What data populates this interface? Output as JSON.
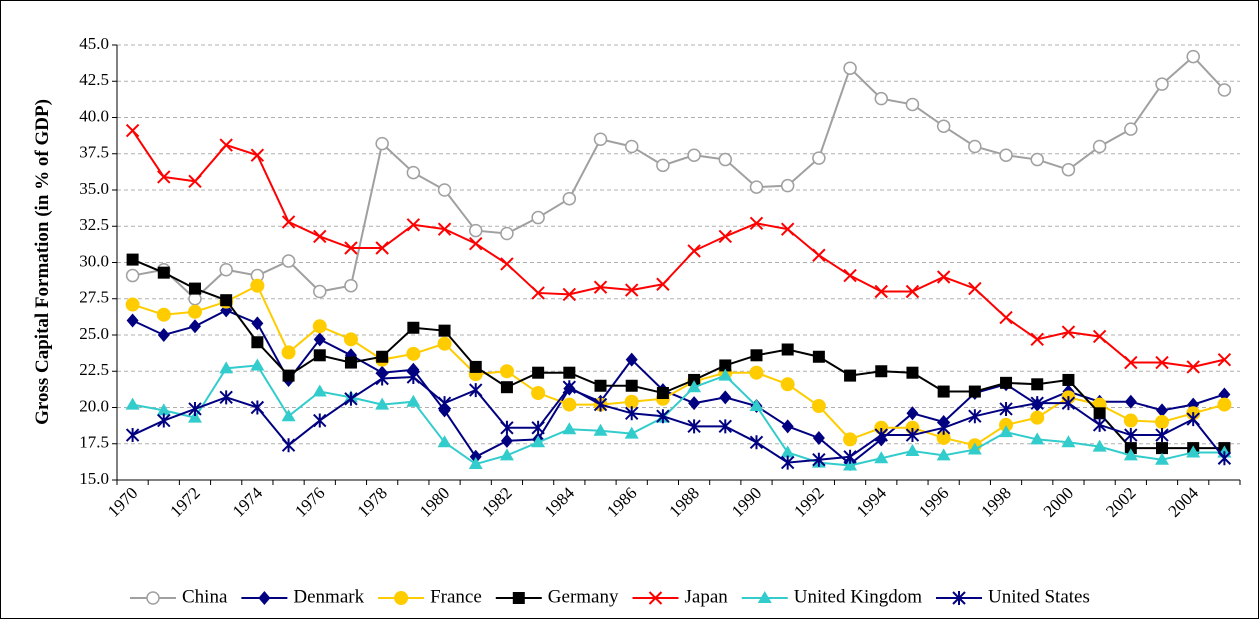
{
  "chart_data": {
    "type": "line",
    "y_label": "Gross Capital Formation (in % of GDP)",
    "categories": [
      "1970",
      null,
      "1972",
      null,
      "1974",
      null,
      "1976",
      null,
      "1978",
      null,
      "1980",
      null,
      "1982",
      null,
      "1984",
      null,
      "1986",
      null,
      "1988",
      null,
      "1990",
      null,
      "1992",
      null,
      "1994",
      null,
      "1996",
      null,
      "1998",
      null,
      "2000",
      null,
      "2002",
      null,
      "2004",
      null
    ],
    "ylim": [
      15,
      45
    ],
    "yticks": [
      {
        "value": 15,
        "label": "15.0"
      },
      17.5,
      {
        "value": 20,
        "label": "20.0"
      },
      22.5,
      {
        "value": 25,
        "label": "25.0"
      },
      27.5,
      {
        "value": 30,
        "label": "30.0"
      },
      32.5,
      {
        "value": 35,
        "label": "35.0"
      },
      37.5,
      {
        "value": 40,
        "label": "40.0"
      },
      42.5,
      {
        "value": 45,
        "label": "45.0"
      }
    ],
    "grid": true,
    "legend": "bottom",
    "series": [
      {
        "name": "China",
        "color": "#a0a0a0",
        "marker": "circle-open",
        "values": [
          29.1,
          29.5,
          27.5,
          29.5,
          29.1,
          30.1,
          28.0,
          28.4,
          38.2,
          36.2,
          35.0,
          32.2,
          32.0,
          33.1,
          34.4,
          38.5,
          38.0,
          36.7,
          37.4,
          37.1,
          35.2,
          35.3,
          37.2,
          43.4,
          41.3,
          40.9,
          39.4,
          38.0,
          37.4,
          37.1,
          36.4,
          38.0,
          39.2,
          42.3,
          44.2,
          41.9
        ]
      },
      {
        "name": "Denmark",
        "color": "#000080",
        "marker": "diamond",
        "values": [
          26.0,
          25.0,
          25.6,
          26.7,
          25.8,
          21.9,
          24.7,
          23.6,
          22.4,
          22.6,
          19.8,
          16.6,
          17.7,
          17.8,
          21.3,
          20.4,
          23.3,
          21.2,
          20.3,
          20.7,
          20.1,
          18.7,
          17.9,
          16.1,
          17.8,
          19.6,
          19.0,
          21.0,
          21.6,
          20.2,
          21.1,
          20.4,
          20.4,
          19.8,
          20.2,
          20.9
        ]
      },
      {
        "name": "France",
        "color": "#ffcc00",
        "marker": "circle",
        "values": [
          27.1,
          26.4,
          26.6,
          27.3,
          28.4,
          23.8,
          25.6,
          24.7,
          23.3,
          23.7,
          24.4,
          22.3,
          22.5,
          21.0,
          20.2,
          20.2,
          20.4,
          20.6,
          21.8,
          22.4,
          22.4,
          21.6,
          20.1,
          17.8,
          18.6,
          18.6,
          17.9,
          17.4,
          18.8,
          19.3,
          20.7,
          20.2,
          19.1,
          19.0,
          19.6,
          20.2
        ]
      },
      {
        "name": "Germany",
        "color": "#000000",
        "marker": "square",
        "values": [
          30.2,
          29.3,
          28.2,
          27.4,
          24.5,
          22.2,
          23.6,
          23.1,
          23.5,
          25.5,
          25.3,
          22.8,
          21.4,
          22.4,
          22.4,
          21.5,
          21.5,
          21.0,
          21.9,
          22.9,
          23.6,
          24.0,
          23.5,
          22.2,
          22.5,
          22.4,
          21.1,
          21.1,
          21.7,
          21.6,
          21.9,
          19.6,
          17.2,
          17.2,
          17.2,
          17.2
        ]
      },
      {
        "name": "Japan",
        "color": "#ff0000",
        "marker": "x",
        "values": [
          39.1,
          35.9,
          35.6,
          38.1,
          37.4,
          32.8,
          31.8,
          31.0,
          31.0,
          32.6,
          32.3,
          31.3,
          29.9,
          27.9,
          27.8,
          28.3,
          28.1,
          28.5,
          30.8,
          31.8,
          32.7,
          32.3,
          30.5,
          29.1,
          28.0,
          28.0,
          29.0,
          28.2,
          26.2,
          24.7,
          25.2,
          24.9,
          23.1,
          23.1,
          22.8,
          23.3
        ]
      },
      {
        "name": "United Kingdom",
        "color": "#33cccc",
        "marker": "triangle",
        "values": [
          20.2,
          19.8,
          19.3,
          22.7,
          22.9,
          19.4,
          21.1,
          20.7,
          20.2,
          20.4,
          17.6,
          16.1,
          16.7,
          17.6,
          18.5,
          18.4,
          18.2,
          19.3,
          21.4,
          22.2,
          20.1,
          16.9,
          16.2,
          16.0,
          16.5,
          17.0,
          16.7,
          17.1,
          18.3,
          17.8,
          17.6,
          17.3,
          16.7,
          16.4,
          16.9,
          16.9
        ]
      },
      {
        "name": "United States",
        "color": "#000080",
        "marker": "asterisk",
        "values": [
          18.1,
          19.1,
          19.9,
          20.7,
          20.0,
          17.4,
          19.1,
          20.6,
          22.0,
          22.1,
          20.3,
          21.2,
          18.6,
          18.6,
          21.4,
          20.2,
          19.6,
          19.4,
          18.7,
          18.7,
          17.6,
          16.2,
          16.4,
          16.6,
          18.1,
          18.1,
          18.6,
          19.4,
          19.9,
          20.3,
          20.3,
          18.8,
          18.1,
          18.1,
          19.2,
          16.5
        ]
      }
    ]
  }
}
